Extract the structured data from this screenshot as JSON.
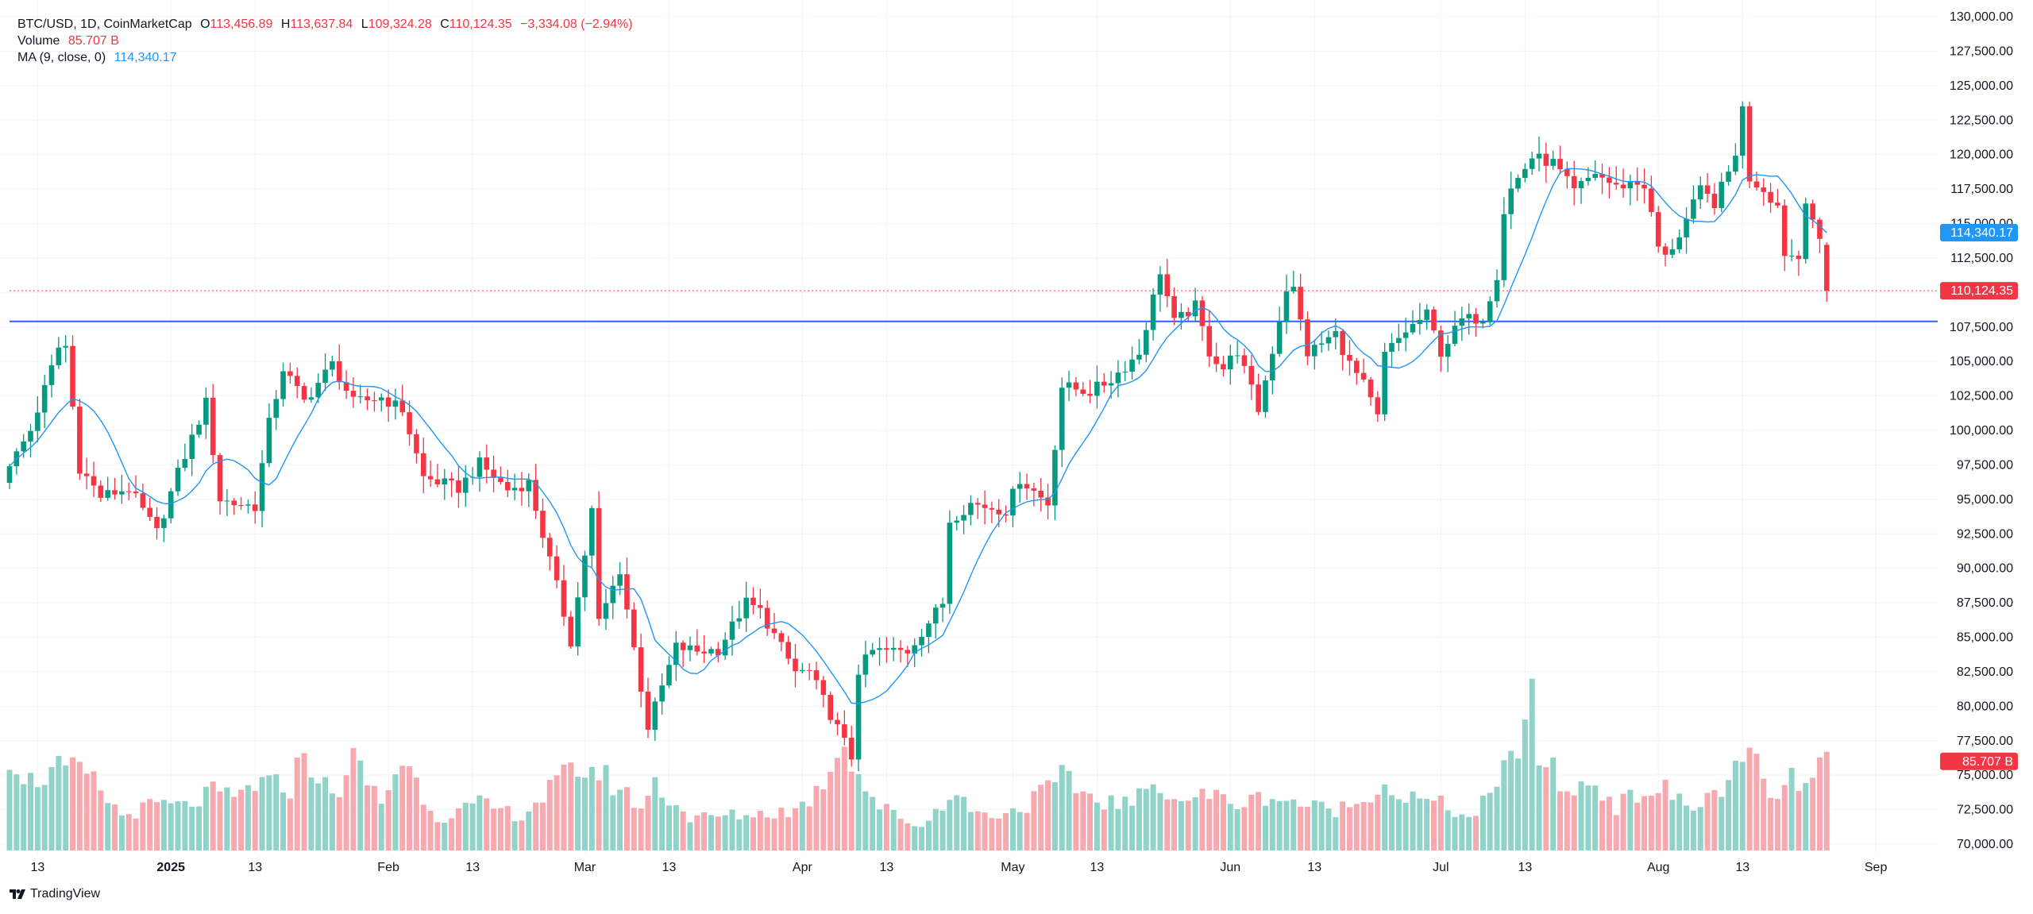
{
  "legend": {
    "symbol": "BTC/USD, 1D, CoinMarketCap",
    "o_label": "O",
    "o_value": "113,456.89",
    "h_label": "H",
    "h_value": "113,637.84",
    "l_label": "L",
    "l_value": "109,324.28",
    "c_label": "C",
    "c_value": "110,124.35",
    "change": "−3,334.08 (−2.94%)",
    "volume_label": "Volume",
    "volume_value": "85.707 B",
    "ma_label": "MA (9, close, 0)",
    "ma_value": "114,340.17"
  },
  "brand": {
    "name": "TradingView",
    "icon": "tradingview-logo-icon"
  },
  "colors": {
    "up": "#089981",
    "down": "#f23645",
    "up_volume": "#92d3c9",
    "down_volume": "#f7a9b0",
    "ma": "#2196f3",
    "level_line": "#2962ff",
    "grid": "#f0f3fa",
    "text": "#131722"
  },
  "chart_data": {
    "type": "candlestick",
    "symbol": "BTC/USD",
    "interval": "1D",
    "start_date": "2024-12-09",
    "ylim": [
      70000,
      130000
    ],
    "y_ticks": [
      "130,000.00",
      "127,500.00",
      "125,000.00",
      "122,500.00",
      "120,000.00",
      "117,500.00",
      "115,000.00",
      "112,500.00",
      "110,000.00",
      "107,500.00",
      "105,000.00",
      "102,500.00",
      "100,000.00",
      "97,500.00",
      "95,000.00",
      "92,500.00",
      "90,000.00",
      "87,500.00",
      "85,000.00",
      "82,500.00",
      "80,000.00",
      "77,500.00",
      "75,000.00",
      "72,500.00",
      "70,000.00"
    ],
    "x_ticks": [
      {
        "label": "13",
        "date": "2024-12-13",
        "bold": false
      },
      {
        "label": "2025",
        "date": "2025-01-01",
        "bold": true
      },
      {
        "label": "13",
        "date": "2025-01-13",
        "bold": false
      },
      {
        "label": "Feb",
        "date": "2025-02-01",
        "bold": false
      },
      {
        "label": "13",
        "date": "2025-02-13",
        "bold": false
      },
      {
        "label": "Mar",
        "date": "2025-03-01",
        "bold": false
      },
      {
        "label": "13",
        "date": "2025-03-13",
        "bold": false
      },
      {
        "label": "Apr",
        "date": "2025-04-01",
        "bold": false
      },
      {
        "label": "13",
        "date": "2025-04-13",
        "bold": false
      },
      {
        "label": "May",
        "date": "2025-05-01",
        "bold": false
      },
      {
        "label": "13",
        "date": "2025-05-13",
        "bold": false
      },
      {
        "label": "Jun",
        "date": "2025-06-01",
        "bold": false
      },
      {
        "label": "13",
        "date": "2025-06-13",
        "bold": false
      },
      {
        "label": "Jul",
        "date": "2025-07-01",
        "bold": false
      },
      {
        "label": "13",
        "date": "2025-07-13",
        "bold": false
      },
      {
        "label": "Aug",
        "date": "2025-08-01",
        "bold": false
      },
      {
        "label": "13",
        "date": "2025-08-13",
        "bold": false
      },
      {
        "label": "Sep",
        "date": "2025-09-01",
        "bold": false
      }
    ],
    "horizontal_line": 107900,
    "last_close": 110124.35,
    "last_close_label": "110,124.35",
    "ma_label": "114,340.17",
    "ma_value": 114340.17,
    "volume_label": "85.707 B",
    "volume_value": 85.707,
    "volume_unit": "B",
    "close_anchors": [
      [
        "2024-12-09",
        97400
      ],
      [
        "2024-12-12",
        100000
      ],
      [
        "2024-12-16",
        106000
      ],
      [
        "2024-12-17",
        106100
      ],
      [
        "2024-12-19",
        97300
      ],
      [
        "2024-12-22",
        95200
      ],
      [
        "2024-12-26",
        95800
      ],
      [
        "2024-12-30",
        92600
      ],
      [
        "2025-01-02",
        96900
      ],
      [
        "2025-01-06",
        102000
      ],
      [
        "2025-01-08",
        95000
      ],
      [
        "2025-01-10",
        94700
      ],
      [
        "2025-01-13",
        94500
      ],
      [
        "2025-01-15",
        100500
      ],
      [
        "2025-01-17",
        104500
      ],
      [
        "2025-01-20",
        102100
      ],
      [
        "2025-01-24",
        104800
      ],
      [
        "2025-01-27",
        102000
      ],
      [
        "2025-01-31",
        102400
      ],
      [
        "2025-02-03",
        101500
      ],
      [
        "2025-02-06",
        96600
      ],
      [
        "2025-02-11",
        95800
      ],
      [
        "2025-02-14",
        97600
      ],
      [
        "2025-02-18",
        95700
      ],
      [
        "2025-02-21",
        96200
      ],
      [
        "2025-02-25",
        88700
      ],
      [
        "2025-02-27",
        84700
      ],
      [
        "2025-03-02",
        94200
      ],
      [
        "2025-03-03",
        86100
      ],
      [
        "2025-03-06",
        89900
      ],
      [
        "2025-03-10",
        78500
      ],
      [
        "2025-03-14",
        84300
      ],
      [
        "2025-03-17",
        84000
      ],
      [
        "2025-03-20",
        84100
      ],
      [
        "2025-03-24",
        87500
      ],
      [
        "2025-03-26",
        86900
      ],
      [
        "2025-03-31",
        82500
      ],
      [
        "2025-04-02",
        82500
      ],
      [
        "2025-04-06",
        78400
      ],
      [
        "2025-04-08",
        76300
      ],
      [
        "2025-04-09",
        82600
      ],
      [
        "2025-04-11",
        84000
      ],
      [
        "2025-04-16",
        84000
      ],
      [
        "2025-04-21",
        87500
      ],
      [
        "2025-04-22",
        93500
      ],
      [
        "2025-04-25",
        94700
      ],
      [
        "2025-04-30",
        94200
      ],
      [
        "2025-05-02",
        96500
      ],
      [
        "2025-05-06",
        94700
      ],
      [
        "2025-05-08",
        103200
      ],
      [
        "2025-05-12",
        102800
      ],
      [
        "2025-05-15",
        103700
      ],
      [
        "2025-05-19",
        105600
      ],
      [
        "2025-05-21",
        109600
      ],
      [
        "2025-05-22",
        111600
      ],
      [
        "2025-05-24",
        107800
      ],
      [
        "2025-05-27",
        109000
      ],
      [
        "2025-05-29",
        105700
      ],
      [
        "2025-05-31",
        104500
      ],
      [
        "2025-06-02",
        105800
      ],
      [
        "2025-06-05",
        101500
      ],
      [
        "2025-06-07",
        105800
      ],
      [
        "2025-06-09",
        110300
      ],
      [
        "2025-06-10",
        110200
      ],
      [
        "2025-06-12",
        105600
      ],
      [
        "2025-06-16",
        107000
      ],
      [
        "2025-06-18",
        104800
      ],
      [
        "2025-06-20",
        103300
      ],
      [
        "2025-06-22",
        100900
      ],
      [
        "2025-06-23",
        105500
      ],
      [
        "2025-06-26",
        107200
      ],
      [
        "2025-06-29",
        108400
      ],
      [
        "2025-07-01",
        105700
      ],
      [
        "2025-07-04",
        108000
      ],
      [
        "2025-07-07",
        108200
      ],
      [
        "2025-07-09",
        111300
      ],
      [
        "2025-07-10",
        115900
      ],
      [
        "2025-07-11",
        117500
      ],
      [
        "2025-07-14",
        119800
      ],
      [
        "2025-07-17",
        119400
      ],
      [
        "2025-07-20",
        117300
      ],
      [
        "2025-07-23",
        118700
      ],
      [
        "2025-07-26",
        117600
      ],
      [
        "2025-07-28",
        118000
      ],
      [
        "2025-07-30",
        117800
      ],
      [
        "2025-08-01",
        113300
      ],
      [
        "2025-08-02",
        112500
      ],
      [
        "2025-08-04",
        114200
      ],
      [
        "2025-08-07",
        117400
      ],
      [
        "2025-08-09",
        116500
      ],
      [
        "2025-08-11",
        118700
      ],
      [
        "2025-08-12",
        120200
      ],
      [
        "2025-08-13",
        123300
      ],
      [
        "2025-08-14",
        118300
      ],
      [
        "2025-08-16",
        117500
      ],
      [
        "2025-08-18",
        116300
      ],
      [
        "2025-08-19",
        112900
      ],
      [
        "2025-08-21",
        112500
      ],
      [
        "2025-08-22",
        116900
      ],
      [
        "2025-08-23",
        115400
      ],
      [
        "2025-08-24",
        113460
      ],
      [
        "2025-08-25",
        110124.35
      ]
    ],
    "volume_anchors_b": [
      [
        "2024-12-09",
        85
      ],
      [
        "2024-12-12",
        60
      ],
      [
        "2024-12-16",
        70
      ],
      [
        "2024-12-20",
        66
      ],
      [
        "2024-12-25",
        30
      ],
      [
        "2024-12-30",
        40
      ],
      [
        "2025-01-03",
        38
      ],
      [
        "2025-01-07",
        50
      ],
      [
        "2025-01-10",
        45
      ],
      [
        "2025-01-13",
        58
      ],
      [
        "2025-01-18",
        55
      ],
      [
        "2025-01-20",
        86
      ],
      [
        "2025-01-24",
        45
      ],
      [
        "2025-01-27",
        78
      ],
      [
        "2025-01-31",
        42
      ],
      [
        "2025-02-03",
        80
      ],
      [
        "2025-02-08",
        28
      ],
      [
        "2025-02-14",
        40
      ],
      [
        "2025-02-20",
        30
      ],
      [
        "2025-02-25",
        58
      ],
      [
        "2025-02-28",
        72
      ],
      [
        "2025-03-03",
        68
      ],
      [
        "2025-03-09",
        38
      ],
      [
        "2025-03-11",
        58
      ],
      [
        "2025-03-16",
        28
      ],
      [
        "2025-03-21",
        30
      ],
      [
        "2025-03-26",
        32
      ],
      [
        "2025-03-31",
        35
      ],
      [
        "2025-04-03",
        50
      ],
      [
        "2025-04-07",
        98
      ],
      [
        "2025-04-09",
        65
      ],
      [
        "2025-04-12",
        38
      ],
      [
        "2025-04-18",
        20
      ],
      [
        "2025-04-22",
        50
      ],
      [
        "2025-04-27",
        30
      ],
      [
        "2025-05-02",
        36
      ],
      [
        "2025-05-08",
        62
      ],
      [
        "2025-05-13",
        44
      ],
      [
        "2025-05-18",
        40
      ],
      [
        "2025-05-22",
        62
      ],
      [
        "2025-05-24",
        44
      ],
      [
        "2025-05-29",
        48
      ],
      [
        "2025-06-03",
        40
      ],
      [
        "2025-06-06",
        48
      ],
      [
        "2025-06-09",
        44
      ],
      [
        "2025-06-15",
        35
      ],
      [
        "2025-06-19",
        40
      ],
      [
        "2025-06-22",
        58
      ],
      [
        "2025-06-26",
        46
      ],
      [
        "2025-07-01",
        40
      ],
      [
        "2025-07-05",
        28
      ],
      [
        "2025-07-09",
        52
      ],
      [
        "2025-07-11",
        82
      ],
      [
        "2025-07-14",
        125
      ],
      [
        "2025-07-15",
        85
      ],
      [
        "2025-07-19",
        50
      ],
      [
        "2025-07-23",
        60
      ],
      [
        "2025-07-26",
        38
      ],
      [
        "2025-07-30",
        52
      ],
      [
        "2025-08-02",
        52
      ],
      [
        "2025-08-06",
        36
      ],
      [
        "2025-08-09",
        50
      ],
      [
        "2025-08-13",
        72
      ],
      [
        "2025-08-14",
        85
      ],
      [
        "2025-08-17",
        44
      ],
      [
        "2025-08-20",
        60
      ],
      [
        "2025-08-23",
        58
      ],
      [
        "2025-08-25",
        85.707
      ]
    ]
  }
}
